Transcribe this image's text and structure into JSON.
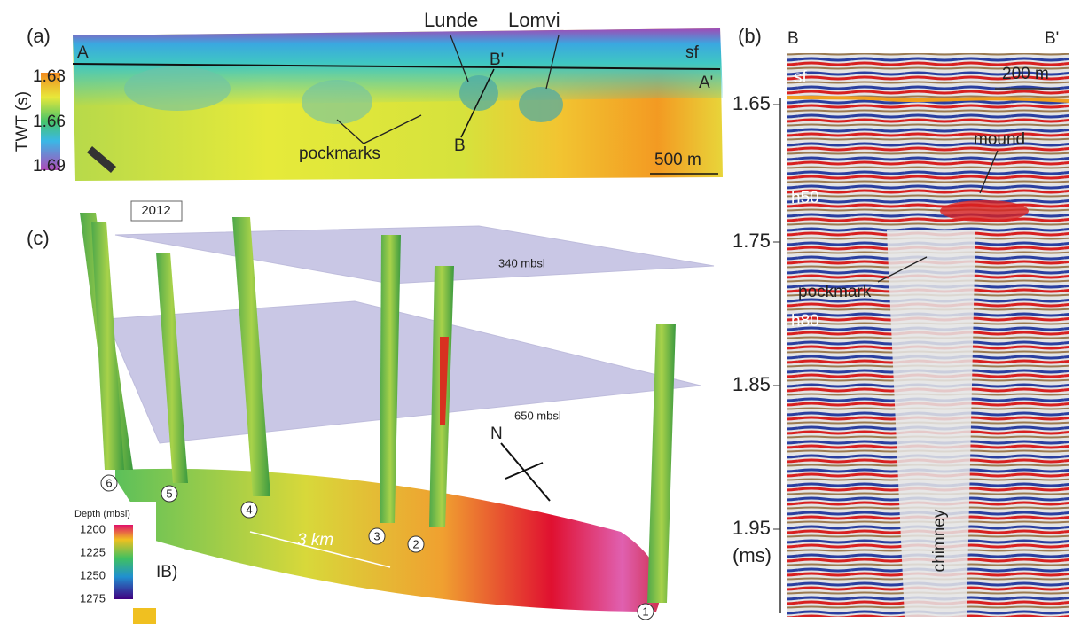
{
  "panel_a": {
    "label": "(a)",
    "point_a": "A",
    "point_a_prime": "A'",
    "point_b": "B",
    "point_b_prime": "B'",
    "seafloor": "sf",
    "lunde": "Lunde",
    "lomvi": "Lomvi",
    "pockmarks": "pockmarks",
    "scale": "500 m",
    "colorbar": {
      "title": "TWT (s)",
      "labels": [
        "1.63",
        "1.66",
        "1.69"
      ]
    }
  },
  "panel_b": {
    "label": "(b)",
    "left_end": "B",
    "right_end": "B'",
    "seafloor": "sf",
    "scale": "200 m",
    "mound": "mound",
    "h50": "h50",
    "pockmark": "pockmark",
    "h80": "h80",
    "chimney": "chimney",
    "axis": {
      "labels": [
        "1.65",
        "1.75",
        "1.85",
        "1.95"
      ],
      "unit": "(ms)"
    }
  },
  "panel_c": {
    "label": "(c)",
    "year": "2012",
    "plane_upper": "340 mbsl",
    "plane_lower": "650 mbsl",
    "north": "N",
    "distance": "3 km",
    "sites": [
      "1",
      "2",
      "3",
      "4",
      "5",
      "6"
    ],
    "colorbar": {
      "title": "Depth (mbsl)",
      "labels": [
        "1200",
        "1225",
        "1250",
        "1275"
      ]
    },
    "cut_label": "IB)"
  }
}
